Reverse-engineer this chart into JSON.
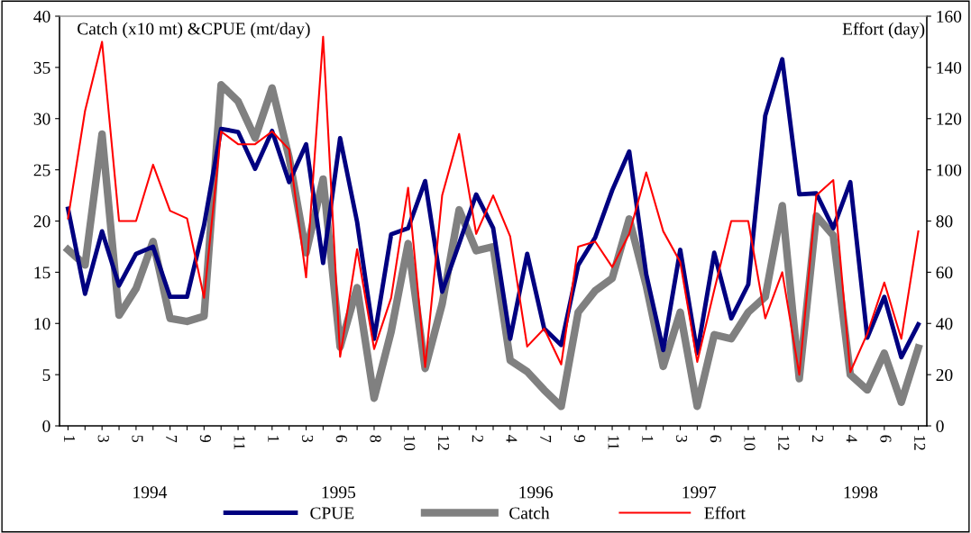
{
  "chart_data": {
    "type": "line",
    "ylabel": "Catch (x10 mt) &CPUE (mt/day)",
    "y2label": "Effort (day)",
    "categories": [
      "1",
      null,
      "3",
      null,
      "5",
      null,
      "7",
      null,
      "9",
      null,
      "11",
      null,
      "1",
      null,
      "3",
      null,
      "6",
      null,
      "8",
      null,
      "10",
      null,
      "12",
      null,
      "2",
      null,
      "4",
      null,
      "7",
      null,
      "9",
      null,
      "11",
      null,
      "1",
      null,
      "3",
      null,
      "6",
      null,
      "10",
      null,
      "12",
      null,
      "2",
      null,
      "4",
      null,
      "6",
      null,
      "12"
    ],
    "series": [
      {
        "name": "CPUE",
        "color": "#000080",
        "values": [
          21.2,
          12.9,
          19.0,
          13.7,
          16.8,
          17.5,
          12.6,
          12.6,
          19.6,
          29.0,
          28.7,
          25.1,
          28.8,
          23.8,
          27.5,
          15.9,
          28.1,
          19.9,
          8.5,
          18.7,
          19.3,
          23.9,
          13.1,
          17.8,
          22.6,
          19.3,
          8.5,
          16.8,
          9.5,
          7.9,
          15.7,
          18.4,
          23.0,
          26.8,
          14.8,
          7.4,
          17.2,
          7.1,
          16.9,
          10.5,
          13.8,
          30.3,
          35.8,
          22.6,
          22.7,
          19.3,
          23.8,
          8.6,
          12.6,
          6.7,
          9.9
        ]
      },
      {
        "name": "Catch",
        "color": "#808080",
        "values": [
          17.2,
          15.7,
          28.5,
          10.8,
          13.4,
          18.0,
          10.5,
          10.2,
          10.7,
          33.3,
          31.7,
          28.1,
          33.0,
          26.2,
          16.9,
          24.1,
          7.7,
          13.5,
          2.7,
          9.2,
          17.8,
          5.6,
          11.9,
          21.1,
          17.1,
          17.5,
          6.4,
          5.3,
          3.5,
          1.9,
          11.1,
          13.2,
          14.4,
          20.2,
          13.7,
          5.8,
          11.1,
          1.9,
          8.9,
          8.5,
          11.1,
          12.6,
          21.5,
          4.6,
          20.5,
          18.6,
          5.0,
          3.5,
          7.1,
          2.3,
          7.6
        ]
      },
      {
        "name": "Effort",
        "color": "#ff0000",
        "axis": "y2",
        "values": [
          81,
          123,
          150,
          80,
          80,
          102,
          84,
          81,
          50,
          115,
          110,
          110,
          115,
          108,
          58,
          152,
          27,
          69,
          30,
          50,
          93,
          23,
          90,
          114,
          75,
          90,
          74,
          31,
          38,
          24,
          70,
          72,
          62,
          75,
          99,
          76,
          64,
          25,
          53,
          80,
          80,
          42,
          60,
          20,
          90,
          96,
          21,
          36,
          56,
          34,
          76
        ]
      }
    ],
    "ylim": [
      0,
      40
    ],
    "yticks": [
      0,
      5,
      10,
      15,
      20,
      25,
      30,
      35,
      40
    ],
    "y2lim": [
      0,
      160
    ],
    "y2ticks": [
      0,
      20,
      40,
      60,
      80,
      100,
      120,
      140,
      160
    ],
    "annotations": [
      "1994",
      "1995",
      "1996",
      "1997",
      "1998"
    ],
    "legend": "bottom",
    "grid": false,
    "marker": "none",
    "line_style": "solid"
  }
}
